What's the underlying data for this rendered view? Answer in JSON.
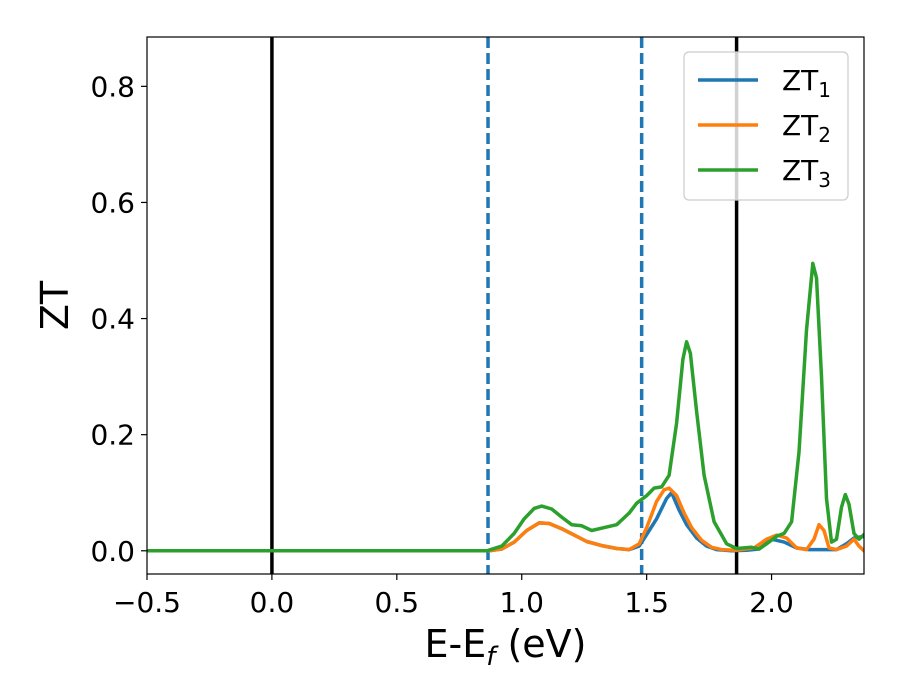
{
  "chart_data": {
    "type": "line",
    "xlabel": "E-E",
    "xlabel_sub": "f",
    "xlabel_unit": " (eV)",
    "ylabel": "ZT",
    "xlim": [
      -0.5,
      2.37
    ],
    "ylim": [
      -0.04,
      0.885
    ],
    "xticks": [
      -0.5,
      0.0,
      0.5,
      1.0,
      1.5,
      2.0
    ],
    "xtick_labels": [
      "−0.5",
      "0.0",
      "0.5",
      "1.0",
      "1.5",
      "2.0"
    ],
    "yticks": [
      0.0,
      0.2,
      0.4,
      0.6,
      0.8
    ],
    "ytick_labels": [
      "0.0",
      "0.2",
      "0.4",
      "0.6",
      "0.8"
    ],
    "grid": false,
    "legend_position": "top-right",
    "vlines": [
      {
        "x": 0.0,
        "style": "solid",
        "color": "#000000"
      },
      {
        "x": 1.86,
        "style": "solid",
        "color": "#000000"
      },
      {
        "x": 0.865,
        "style": "dashed",
        "color": "#1f77b4"
      },
      {
        "x": 1.48,
        "style": "dashed",
        "color": "#1f77b4"
      }
    ],
    "series": [
      {
        "name": "ZT",
        "name_sub": "1",
        "color": "#1f77b4",
        "points": [
          [
            -0.5,
            0.0
          ],
          [
            0.87,
            0.0
          ],
          [
            0.92,
            0.003
          ],
          [
            0.97,
            0.015
          ],
          [
            1.02,
            0.035
          ],
          [
            1.07,
            0.048
          ],
          [
            1.11,
            0.047
          ],
          [
            1.16,
            0.038
          ],
          [
            1.21,
            0.027
          ],
          [
            1.26,
            0.016
          ],
          [
            1.32,
            0.009
          ],
          [
            1.38,
            0.004
          ],
          [
            1.43,
            0.002
          ],
          [
            1.47,
            0.008
          ],
          [
            1.5,
            0.028
          ],
          [
            1.54,
            0.055
          ],
          [
            1.58,
            0.09
          ],
          [
            1.6,
            0.1
          ],
          [
            1.63,
            0.07
          ],
          [
            1.66,
            0.045
          ],
          [
            1.7,
            0.022
          ],
          [
            1.74,
            0.008
          ],
          [
            1.78,
            0.002
          ],
          [
            1.84,
            0.0
          ],
          [
            1.9,
            0.001
          ],
          [
            1.95,
            0.003
          ],
          [
            2.0,
            0.02
          ],
          [
            2.05,
            0.015
          ],
          [
            2.1,
            0.005
          ],
          [
            2.15,
            0.002
          ],
          [
            2.22,
            0.002
          ],
          [
            2.26,
            0.002
          ],
          [
            2.3,
            0.012
          ],
          [
            2.33,
            0.022
          ],
          [
            2.37,
            0.025
          ]
        ]
      },
      {
        "name": "ZT",
        "name_sub": "2",
        "color": "#ff7f0e",
        "points": [
          [
            -0.5,
            0.0
          ],
          [
            0.87,
            0.0
          ],
          [
            0.92,
            0.003
          ],
          [
            0.97,
            0.015
          ],
          [
            1.02,
            0.035
          ],
          [
            1.07,
            0.048
          ],
          [
            1.11,
            0.047
          ],
          [
            1.16,
            0.038
          ],
          [
            1.21,
            0.027
          ],
          [
            1.26,
            0.016
          ],
          [
            1.32,
            0.009
          ],
          [
            1.38,
            0.004
          ],
          [
            1.43,
            0.002
          ],
          [
            1.47,
            0.012
          ],
          [
            1.5,
            0.04
          ],
          [
            1.54,
            0.085
          ],
          [
            1.57,
            0.105
          ],
          [
            1.59,
            0.108
          ],
          [
            1.62,
            0.095
          ],
          [
            1.65,
            0.065
          ],
          [
            1.68,
            0.04
          ],
          [
            1.72,
            0.018
          ],
          [
            1.76,
            0.006
          ],
          [
            1.8,
            0.002
          ],
          [
            1.86,
            0.001
          ],
          [
            1.93,
            0.005
          ],
          [
            1.98,
            0.02
          ],
          [
            2.02,
            0.027
          ],
          [
            2.06,
            0.022
          ],
          [
            2.1,
            0.005
          ],
          [
            2.14,
            0.002
          ],
          [
            2.17,
            0.02
          ],
          [
            2.19,
            0.045
          ],
          [
            2.21,
            0.035
          ],
          [
            2.23,
            0.005
          ],
          [
            2.26,
            0.002
          ],
          [
            2.3,
            0.008
          ],
          [
            2.33,
            0.02
          ],
          [
            2.35,
            0.008
          ],
          [
            2.37,
            0.0
          ]
        ]
      },
      {
        "name": "ZT",
        "name_sub": "3",
        "color": "#2ca02c",
        "points": [
          [
            -0.5,
            0.0
          ],
          [
            0.86,
            0.0
          ],
          [
            0.92,
            0.008
          ],
          [
            0.97,
            0.03
          ],
          [
            1.01,
            0.055
          ],
          [
            1.05,
            0.073
          ],
          [
            1.08,
            0.077
          ],
          [
            1.12,
            0.072
          ],
          [
            1.16,
            0.058
          ],
          [
            1.2,
            0.045
          ],
          [
            1.24,
            0.043
          ],
          [
            1.28,
            0.035
          ],
          [
            1.33,
            0.04
          ],
          [
            1.38,
            0.045
          ],
          [
            1.43,
            0.065
          ],
          [
            1.46,
            0.082
          ],
          [
            1.5,
            0.095
          ],
          [
            1.53,
            0.108
          ],
          [
            1.56,
            0.11
          ],
          [
            1.59,
            0.13
          ],
          [
            1.62,
            0.22
          ],
          [
            1.645,
            0.33
          ],
          [
            1.66,
            0.36
          ],
          [
            1.675,
            0.34
          ],
          [
            1.7,
            0.24
          ],
          [
            1.73,
            0.13
          ],
          [
            1.77,
            0.05
          ],
          [
            1.82,
            0.012
          ],
          [
            1.86,
            0.004
          ],
          [
            1.92,
            0.006
          ],
          [
            1.95,
            0.003
          ],
          [
            1.98,
            0.012
          ],
          [
            2.02,
            0.025
          ],
          [
            2.05,
            0.03
          ],
          [
            2.08,
            0.05
          ],
          [
            2.11,
            0.17
          ],
          [
            2.14,
            0.38
          ],
          [
            2.165,
            0.495
          ],
          [
            2.18,
            0.47
          ],
          [
            2.2,
            0.3
          ],
          [
            2.22,
            0.09
          ],
          [
            2.24,
            0.015
          ],
          [
            2.26,
            0.02
          ],
          [
            2.28,
            0.075
          ],
          [
            2.295,
            0.097
          ],
          [
            2.31,
            0.08
          ],
          [
            2.33,
            0.03
          ],
          [
            2.35,
            0.02
          ],
          [
            2.37,
            0.028
          ]
        ]
      }
    ]
  }
}
